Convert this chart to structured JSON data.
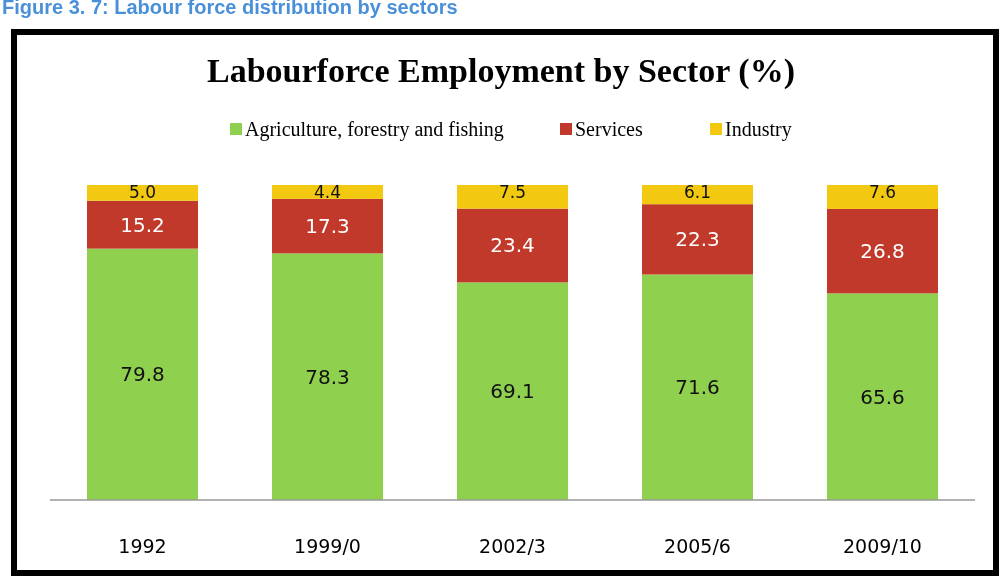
{
  "chart_data": {
    "type": "bar",
    "title": "Labourforce Employment by Sector (%)",
    "annotations": [
      "Figure 3. 7: Labour force distribution by sectors"
    ],
    "categories": [
      "1992",
      "1999/0",
      "2002/3",
      "2005/6",
      "2009/10"
    ],
    "stacked": true,
    "legend": "top",
    "series": [
      {
        "name": "Agriculture, forestry and fishing",
        "color": "#8fd14f",
        "values": [
          79.8,
          78.3,
          69.1,
          71.6,
          65.6
        ],
        "value_labels": [
          "79.8",
          "78.3",
          "69.1",
          "71.6",
          "65.6"
        ]
      },
      {
        "name": "Services",
        "color": "#c0392b",
        "values": [
          15.2,
          17.3,
          23.4,
          22.3,
          26.8
        ],
        "value_labels": [
          "15.2",
          "17.3",
          "23.4",
          "22.3",
          "26.8"
        ]
      },
      {
        "name": "Industry",
        "color": "#f2c811",
        "values": [
          5.0,
          4.4,
          7.5,
          6.1,
          7.6
        ],
        "value_labels": [
          "5.0",
          "4.4",
          "7.5",
          "6.1",
          "7.6"
        ]
      }
    ]
  }
}
